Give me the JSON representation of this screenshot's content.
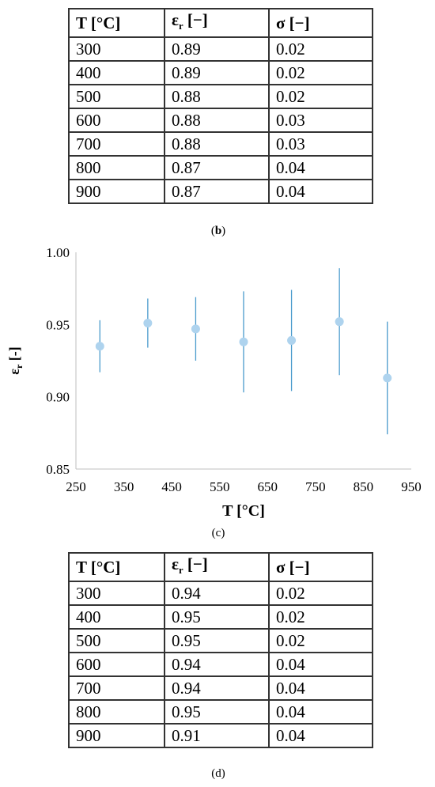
{
  "table_b": {
    "headers": {
      "t": "T [°C]",
      "eps": "ε",
      "eps_sub": "r",
      "eps_unit": " [−]",
      "sigma": "σ [−]"
    },
    "rows": [
      [
        "300",
        "0.89",
        "0.02"
      ],
      [
        "400",
        "0.89",
        "0.02"
      ],
      [
        "500",
        "0.88",
        "0.02"
      ],
      [
        "600",
        "0.88",
        "0.03"
      ],
      [
        "700",
        "0.88",
        "0.03"
      ],
      [
        "800",
        "0.87",
        "0.04"
      ],
      [
        "900",
        "0.87",
        "0.04"
      ]
    ]
  },
  "caption_b": {
    "open": "(",
    "letter": "b",
    "close": ")"
  },
  "chart_data": {
    "type": "scatter",
    "x": [
      300,
      400,
      500,
      600,
      700,
      800,
      900
    ],
    "y": [
      0.935,
      0.951,
      0.947,
      0.938,
      0.939,
      0.952,
      0.913
    ],
    "err_low": [
      0.917,
      0.934,
      0.925,
      0.903,
      0.904,
      0.915,
      0.874
    ],
    "err_high": [
      0.953,
      0.968,
      0.969,
      0.973,
      0.974,
      0.989,
      0.952
    ],
    "xlabel": "T [°C]",
    "ylabel_main": "ε",
    "ylabel_sub": "r",
    "ylabel_unit": " [-]",
    "xlim": [
      250,
      950
    ],
    "ylim": [
      0.85,
      1.0
    ],
    "xticks": [
      "250",
      "350",
      "450",
      "550",
      "650",
      "750",
      "850",
      "950"
    ],
    "yticks": [
      "0.85",
      "0.90",
      "0.95",
      "1.00"
    ],
    "grid": false,
    "marker_color": "#aed3ee",
    "errbar_color": "#4a9bcd"
  },
  "caption_c": {
    "text": "(c)"
  },
  "table_d": {
    "headers": {
      "t": "T [°C]",
      "eps": "ε",
      "eps_sub": "r",
      "eps_unit": " [−]",
      "sigma": "σ [−]"
    },
    "rows": [
      [
        "300",
        "0.94",
        "0.02"
      ],
      [
        "400",
        "0.95",
        "0.02"
      ],
      [
        "500",
        "0.95",
        "0.02"
      ],
      [
        "600",
        "0.94",
        "0.04"
      ],
      [
        "700",
        "0.94",
        "0.04"
      ],
      [
        "800",
        "0.95",
        "0.04"
      ],
      [
        "900",
        "0.91",
        "0.04"
      ]
    ]
  },
  "caption_d": {
    "text": "(d)"
  }
}
